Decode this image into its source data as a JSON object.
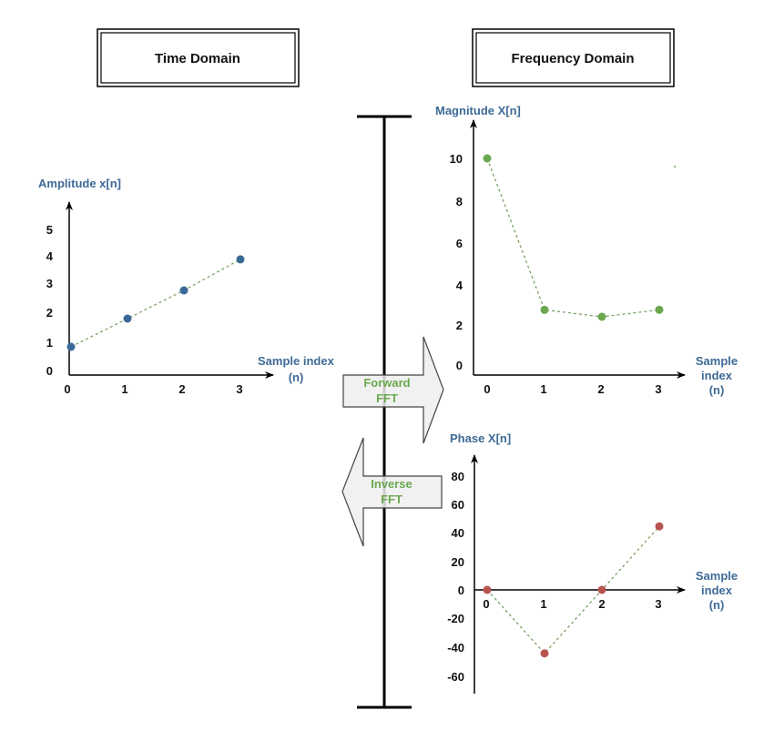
{
  "titles": {
    "time": "Time Domain",
    "frequency": "Frequency Domain"
  },
  "arrows": {
    "forward": [
      "Forward",
      "FFT"
    ],
    "inverse": [
      "Inverse",
      "FFT"
    ]
  },
  "colors": {
    "axis_label": "#3e6a96",
    "time_points": "#3b6a98",
    "magnitude_points": "#6aa84f",
    "phase_points": "#b85450",
    "dashed_line": "#7aa36a",
    "arrow_fill": "#f0f0f0"
  },
  "chart_data": [
    {
      "id": "time",
      "type": "line",
      "ylabel": "Amplitude x[n]",
      "xlabel": [
        "Sample index",
        "(n)"
      ],
      "x": [
        0,
        1,
        2,
        3
      ],
      "values": [
        1,
        2,
        3,
        4.1
      ],
      "yticks": [
        "0",
        "1",
        "2",
        "3",
        "4",
        "5"
      ],
      "xticks": [
        "0",
        "1",
        "2",
        "3"
      ],
      "ylim": [
        0,
        5
      ]
    },
    {
      "id": "magnitude",
      "type": "line",
      "ylabel": "Magnitude X[n]",
      "xlabel": [
        "Sample",
        "index",
        "(n)"
      ],
      "x": [
        0,
        1,
        2,
        3
      ],
      "values": [
        10,
        2.83,
        2.5,
        2.83
      ],
      "yticks": [
        "0",
        "2",
        "4",
        "6",
        "8",
        "10"
      ],
      "xticks": [
        "0",
        "1",
        "2",
        "3"
      ],
      "ylim": [
        0,
        10
      ]
    },
    {
      "id": "phase",
      "type": "line",
      "ylabel": "Phase X[n]",
      "xlabel": [
        "Sample",
        "index",
        "(n)"
      ],
      "x": [
        0,
        1,
        2,
        3
      ],
      "values": [
        0,
        -45,
        0,
        45
      ],
      "yticks": [
        "80",
        "60",
        "40",
        "20",
        "0",
        "-20",
        "-40",
        "-60"
      ],
      "xticks": [
        "0",
        "1",
        "2",
        "3"
      ],
      "ylim": [
        -60,
        80
      ]
    }
  ]
}
